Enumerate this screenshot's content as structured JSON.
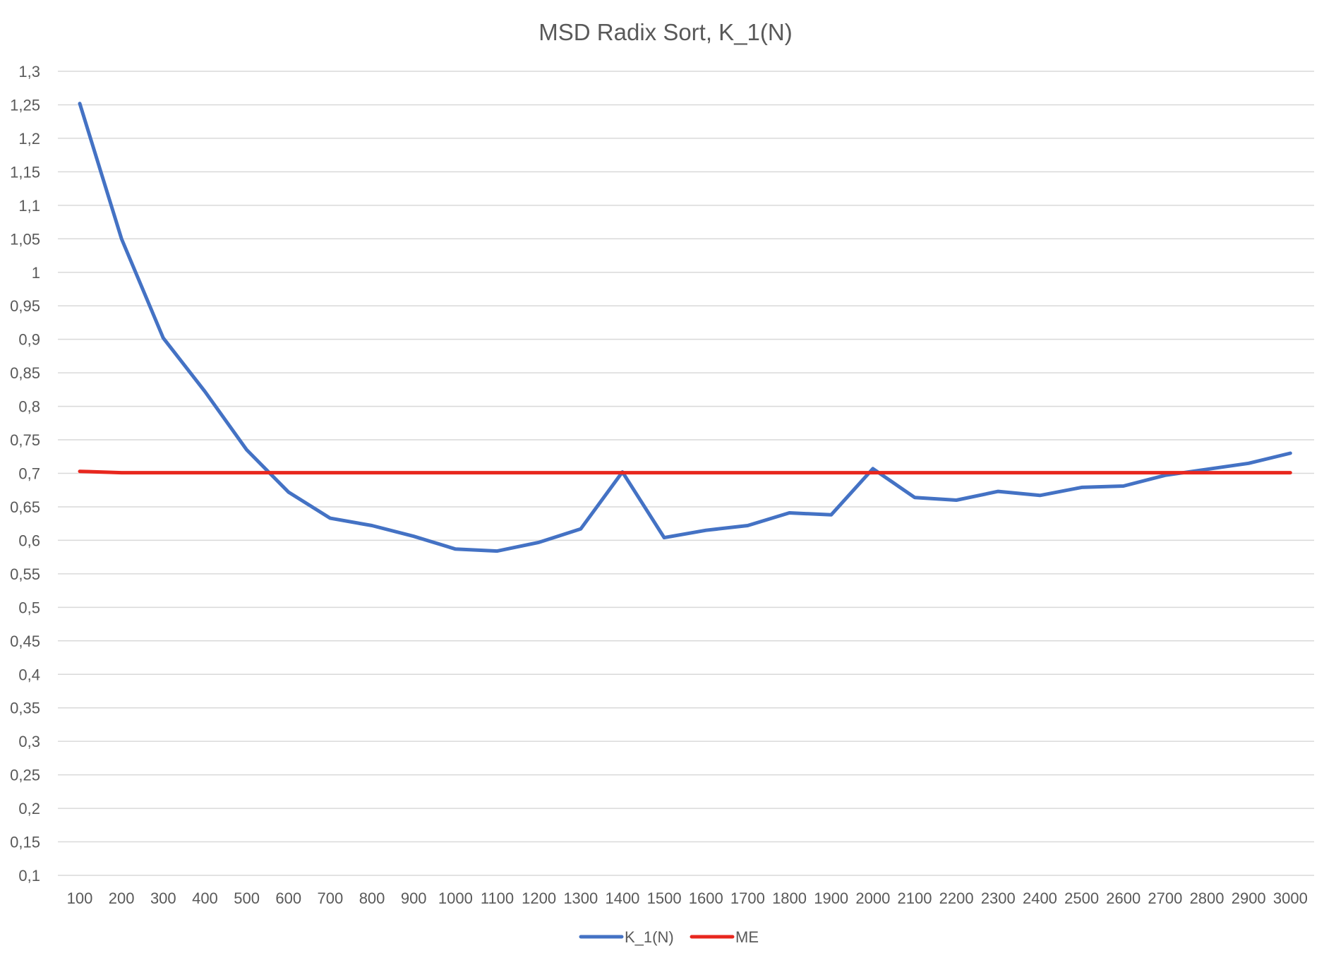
{
  "chart_data": {
    "type": "line",
    "title": "MSD Radix Sort, K_1(N)",
    "xlabel": "",
    "ylabel": "",
    "categories": [
      "100",
      "200",
      "300",
      "400",
      "500",
      "600",
      "700",
      "800",
      "900",
      "1000",
      "1100",
      "1200",
      "1300",
      "1400",
      "1500",
      "1600",
      "1700",
      "1800",
      "1900",
      "2000",
      "2100",
      "2200",
      "2300",
      "2400",
      "2500",
      "2600",
      "2700",
      "2800",
      "2900",
      "3000"
    ],
    "ylim": [
      0.1,
      1.3
    ],
    "y_ticks": [
      "0,1",
      "0,15",
      "0,2",
      "0,25",
      "0,3",
      "0,35",
      "0,4",
      "0,45",
      "0,5",
      "0,55",
      "0,6",
      "0,65",
      "0,7",
      "0,75",
      "0,8",
      "0,85",
      "0,9",
      "0,95",
      "1",
      "1,05",
      "1,1",
      "1,15",
      "1,2",
      "1,25",
      "1,3"
    ],
    "grid": true,
    "legend_position": "bottom",
    "series": [
      {
        "name": "K_1(N)",
        "color": "#4472C4",
        "values": [
          1.252,
          1.05,
          0.902,
          0.822,
          0.735,
          0.672,
          0.633,
          0.622,
          0.606,
          0.587,
          0.584,
          0.597,
          0.617,
          0.702,
          0.604,
          0.615,
          0.622,
          0.641,
          0.638,
          0.707,
          0.664,
          0.66,
          0.673,
          0.667,
          0.679,
          0.681,
          0.697,
          0.706,
          0.715,
          0.73
        ]
      },
      {
        "name": "ME",
        "color": "#E8271E",
        "values": [
          0.703,
          0.701,
          0.701,
          0.701,
          0.701,
          0.701,
          0.701,
          0.701,
          0.701,
          0.701,
          0.701,
          0.701,
          0.701,
          0.701,
          0.701,
          0.701,
          0.701,
          0.701,
          0.701,
          0.701,
          0.701,
          0.701,
          0.701,
          0.701,
          0.701,
          0.701,
          0.701,
          0.701,
          0.701,
          0.701
        ]
      }
    ]
  }
}
